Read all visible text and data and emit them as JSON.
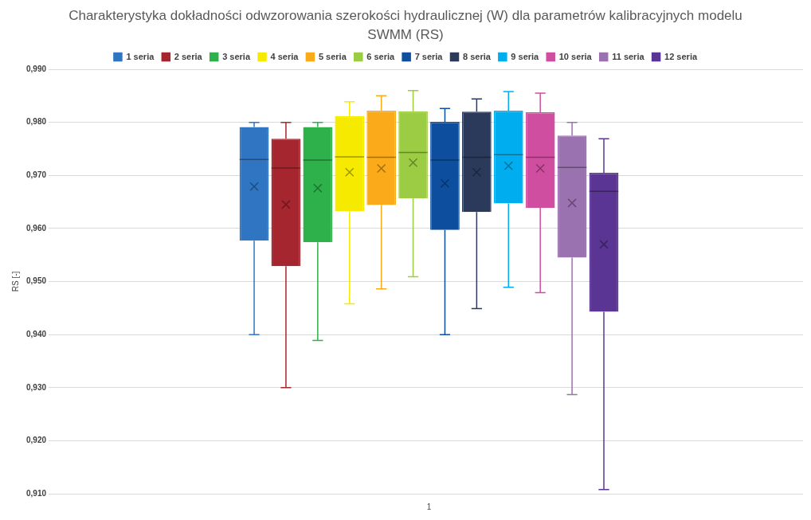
{
  "chart_data": {
    "type": "box",
    "title": "Charakterystyka dokładności odwzorowania szerokości hydraulicznej (W) dla parametrów kalibracyjnych modelu SWMM (RS)",
    "ylabel": "RS [-]",
    "categories": [
      "1"
    ],
    "ylim": [
      0.91,
      0.99
    ],
    "yticks": [
      {
        "value": 0.91,
        "label": "0,910"
      },
      {
        "value": 0.92,
        "label": "0,920"
      },
      {
        "value": 0.93,
        "label": "0,930"
      },
      {
        "value": 0.94,
        "label": "0,940"
      },
      {
        "value": 0.95,
        "label": "0,950"
      },
      {
        "value": 0.96,
        "label": "0,960"
      },
      {
        "value": 0.97,
        "label": "0,970"
      },
      {
        "value": 0.98,
        "label": "0,980"
      },
      {
        "value": 0.99,
        "label": "0,990"
      }
    ],
    "grid": "y",
    "legend": "top",
    "series": [
      {
        "name": "1 seria",
        "color": "#3075c2",
        "boxes": [
          {
            "low": 0.94,
            "q1": 0.9577,
            "median": 0.973,
            "q3": 0.9791,
            "high": 0.98,
            "mean": 0.9679
          }
        ]
      },
      {
        "name": "2 seria",
        "color": "#a5262f",
        "boxes": [
          {
            "low": 0.93,
            "q1": 0.9529,
            "median": 0.9714,
            "q3": 0.9769,
            "high": 0.98,
            "mean": 0.9645
          }
        ]
      },
      {
        "name": "3 seria",
        "color": "#2eb04a",
        "boxes": [
          {
            "low": 0.9389,
            "q1": 0.9574,
            "median": 0.9729,
            "q3": 0.9791,
            "high": 0.98,
            "mean": 0.9676
          }
        ]
      },
      {
        "name": "4 seria",
        "color": "#f5ea00",
        "boxes": [
          {
            "low": 0.9458,
            "q1": 0.9632,
            "median": 0.9735,
            "q3": 0.9812,
            "high": 0.9839,
            "mean": 0.9706
          }
        ]
      },
      {
        "name": "5 seria",
        "color": "#fbaa19",
        "boxes": [
          {
            "low": 0.9486,
            "q1": 0.9644,
            "median": 0.9734,
            "q3": 0.9822,
            "high": 0.985,
            "mean": 0.9713
          }
        ]
      },
      {
        "name": "6 seria",
        "color": "#9ccb44",
        "boxes": [
          {
            "low": 0.9509,
            "q1": 0.9657,
            "median": 0.9743,
            "q3": 0.9821,
            "high": 0.986,
            "mean": 0.9724
          }
        ]
      },
      {
        "name": "7 seria",
        "color": "#0d4f9e",
        "boxes": [
          {
            "low": 0.94,
            "q1": 0.9597,
            "median": 0.9729,
            "q3": 0.9801,
            "high": 0.9826,
            "mean": 0.9685
          }
        ]
      },
      {
        "name": "8 seria",
        "color": "#2b3a5a",
        "boxes": [
          {
            "low": 0.9449,
            "q1": 0.9631,
            "median": 0.9734,
            "q3": 0.982,
            "high": 0.9844,
            "mean": 0.9706
          }
        ]
      },
      {
        "name": "9 seria",
        "color": "#00aeef",
        "boxes": [
          {
            "low": 0.9489,
            "q1": 0.9647,
            "median": 0.9739,
            "q3": 0.9822,
            "high": 0.9858,
            "mean": 0.9718
          }
        ]
      },
      {
        "name": "10 seria",
        "color": "#cf4e9f",
        "boxes": [
          {
            "low": 0.9479,
            "q1": 0.9639,
            "median": 0.9734,
            "q3": 0.9819,
            "high": 0.9855,
            "mean": 0.9713
          }
        ]
      },
      {
        "name": "11 seria",
        "color": "#9b72b0",
        "boxes": [
          {
            "low": 0.9287,
            "q1": 0.9545,
            "median": 0.9715,
            "q3": 0.9775,
            "high": 0.98,
            "mean": 0.9648
          }
        ]
      },
      {
        "name": "12 seria",
        "color": "#5a3594",
        "boxes": [
          {
            "low": 0.9108,
            "q1": 0.9443,
            "median": 0.967,
            "q3": 0.9705,
            "high": 0.9769,
            "mean": 0.957
          }
        ]
      }
    ]
  }
}
